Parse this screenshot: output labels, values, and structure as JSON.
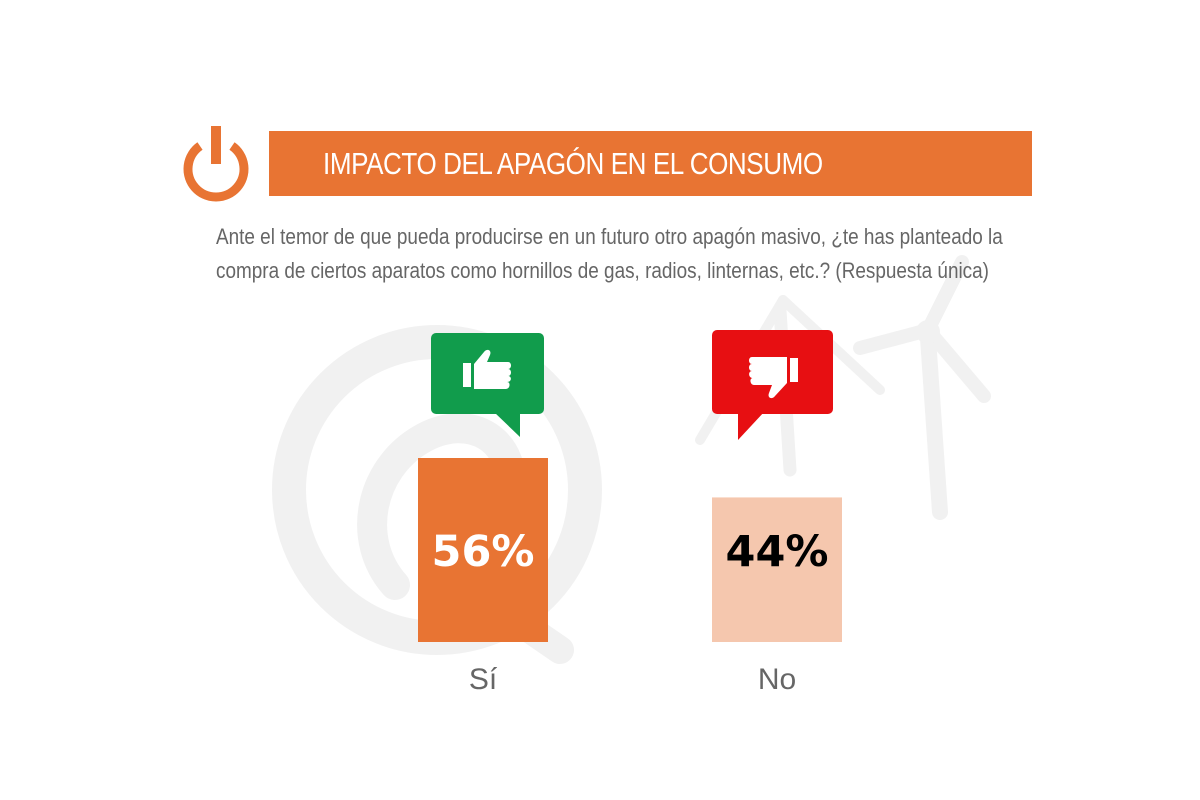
{
  "header": {
    "title": "IMPACTO DEL APAGÓN EN EL CONSUMO",
    "power_icon": "power-icon",
    "question_line1": "Ante el temor de que pueda producirse en un futuro otro apagón masivo, ¿te has planteado la",
    "question_line2": "compra de ciertos aparatos como hornillos de gas, radios, linternas, etc.? (Respuesta única)"
  },
  "colors": {
    "accent": "#e87433",
    "bar_si": "#e87433",
    "bar_no": "#f5c7ae",
    "bubble_si": "#119c4c",
    "bubble_no": "#e70f12",
    "label": "#666666"
  },
  "chart_data": {
    "type": "bar",
    "categories": [
      "Sí",
      "No"
    ],
    "values": [
      56,
      44
    ],
    "value_labels": [
      "56%",
      "44%"
    ],
    "ylim": [
      0,
      100
    ],
    "icons": [
      "thumbs-up-icon",
      "thumbs-down-icon"
    ],
    "grid": false
  }
}
